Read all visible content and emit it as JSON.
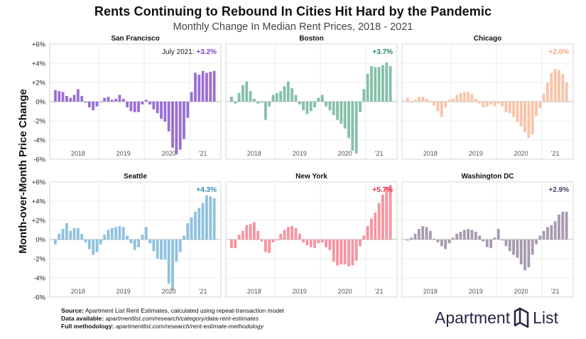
{
  "title": "Rents Continuing to Rebound In Cities Hit Hard by the Pandemic",
  "subtitle": "Monthly Change In Median Rent Prices, 2018 - 2021",
  "footer": {
    "source_label": "Source:",
    "source_text": "Apartment List Rent Estimates, calculated using repeat-transaction model",
    "data_label": "Data available:",
    "data_text": "apartmentlist.com/research/category/data-rent-estimates",
    "method_label": "Full methodology:",
    "method_text": "apartmentlist.com/research/rent-estimate-methodology"
  },
  "logo": {
    "word1": "Apartment",
    "word2": "List",
    "color": "#2a2340"
  },
  "chart_data": {
    "type": "bar",
    "ylabel": "Month-over-Month Price Change",
    "ylim": [
      -6,
      6
    ],
    "yticks": [
      "-6%",
      "-4%",
      "-2%",
      "0%",
      "+2%",
      "+4%",
      "+6%"
    ],
    "year_labels": [
      "2018",
      "2019",
      "2020",
      "'21"
    ],
    "x_start": "2018-01",
    "x_end": "2021-07",
    "grid": true,
    "panels": [
      {
        "name": "San Francisco",
        "color": "#9a6fd6",
        "label_color": "#7a45c8",
        "annotation_prefix": "July 2021: ",
        "annotation_value": "+3.2%",
        "values": [
          1.2,
          1.1,
          1.0,
          0.6,
          0.4,
          0.7,
          1.3,
          0.6,
          -0.1,
          -0.6,
          -0.9,
          -0.5,
          0.0,
          0.4,
          0.5,
          0.2,
          0.3,
          0.7,
          0.3,
          -0.6,
          -1.0,
          -1.1,
          -1.1,
          -0.3,
          0.2,
          -0.3,
          -0.8,
          -1.2,
          -1.8,
          -2.1,
          -3.1,
          -4.8,
          -5.5,
          -5.0,
          -3.9,
          -1.7,
          1.0,
          3.0,
          2.8,
          3.2,
          3.0,
          3.1,
          3.2
        ]
      },
      {
        "name": "Boston",
        "color": "#85c0a8",
        "label_color": "#24895f",
        "annotation_prefix": "",
        "annotation_value": "+3.7%",
        "values": [
          0.5,
          -0.2,
          0.9,
          1.7,
          2.1,
          1.1,
          0.3,
          -0.2,
          -0.1,
          -1.9,
          -0.5,
          0.7,
          0.9,
          1.1,
          1.6,
          2.1,
          1.4,
          0.7,
          -0.3,
          -0.9,
          -1.3,
          -1.0,
          -0.6,
          0.4,
          0.7,
          -0.5,
          -0.9,
          -1.4,
          -1.9,
          -2.3,
          -2.8,
          -3.8,
          -5.1,
          -5.4,
          -1.1,
          1.3,
          2.9,
          3.7,
          3.6,
          3.6,
          3.8,
          4.1,
          3.7
        ]
      },
      {
        "name": "Chicago",
        "color": "#f9c4a8",
        "label_color": "#f4a17a",
        "annotation_prefix": "",
        "annotation_value": "+2.0%",
        "values": [
          0.4,
          -0.1,
          0.2,
          0.5,
          0.5,
          0.3,
          -0.1,
          -0.4,
          -1.0,
          -1.6,
          -0.6,
          0.2,
          0.3,
          0.7,
          0.9,
          1.0,
          1.0,
          0.8,
          0.3,
          -0.2,
          -0.6,
          -0.5,
          -0.3,
          -0.5,
          -0.2,
          -0.5,
          -1.1,
          -1.2,
          -1.6,
          -2.1,
          -2.6,
          -3.2,
          -3.8,
          -3.4,
          -1.5,
          -0.7,
          0.8,
          2.0,
          3.0,
          3.4,
          3.3,
          2.9,
          2.0
        ]
      },
      {
        "name": "Seattle",
        "color": "#8fc1de",
        "label_color": "#2f8ab8",
        "annotation_prefix": "",
        "annotation_value": "+4.3%",
        "values": [
          -0.5,
          0.6,
          1.1,
          1.7,
          0.9,
          1.2,
          1.2,
          0.6,
          -0.3,
          -1.0,
          -1.6,
          -1.3,
          -0.5,
          0.5,
          1.0,
          1.2,
          1.3,
          1.4,
          1.3,
          0.4,
          -0.4,
          -1.1,
          -0.8,
          0.5,
          1.3,
          -0.4,
          -1.2,
          -2.0,
          -2.1,
          -2.1,
          -4.6,
          -5.3,
          -2.3,
          -1.3,
          0.4,
          1.7,
          2.3,
          2.9,
          3.3,
          3.8,
          4.6,
          4.5,
          4.3
        ]
      },
      {
        "name": "New York",
        "color": "#f6949f",
        "label_color": "#e22a4a",
        "annotation_prefix": "",
        "annotation_value": "+5.7%",
        "values": [
          -0.9,
          -0.9,
          0.5,
          0.9,
          1.5,
          1.6,
          1.8,
          0.9,
          -0.2,
          -1.3,
          -1.4,
          -0.3,
          -0.1,
          0.6,
          1.0,
          1.3,
          1.4,
          1.2,
          0.6,
          -0.3,
          -0.6,
          -0.8,
          -0.9,
          -0.4,
          -0.3,
          -0.8,
          -1.1,
          -2.3,
          -2.7,
          -2.6,
          -2.6,
          -2.8,
          -2.7,
          -2.2,
          -0.7,
          0.4,
          1.4,
          2.2,
          2.8,
          3.8,
          4.7,
          5.5,
          5.7
        ]
      },
      {
        "name": "Washington DC",
        "color": "#a79bb0",
        "label_color": "#4b3b6b",
        "annotation_prefix": "",
        "annotation_value": "+2.9%",
        "values": [
          -0.1,
          0.2,
          0.6,
          1.1,
          1.4,
          1.3,
          0.9,
          0.1,
          -0.3,
          -0.7,
          -1.0,
          -0.4,
          0.2,
          0.6,
          0.8,
          1.0,
          1.1,
          1.0,
          0.8,
          0.4,
          -0.2,
          -0.8,
          -0.9,
          0.2,
          1.1,
          -0.1,
          -0.7,
          -1.2,
          -1.6,
          -1.9,
          -2.6,
          -3.2,
          -2.9,
          -1.6,
          -0.5,
          0.4,
          0.9,
          1.3,
          1.5,
          1.9,
          2.6,
          2.9,
          2.9
        ]
      }
    ]
  }
}
